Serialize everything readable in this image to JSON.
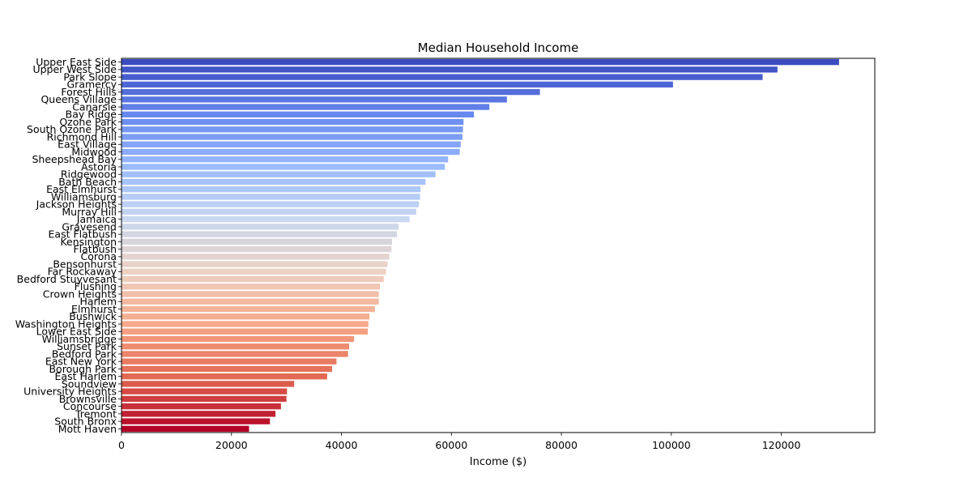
{
  "chart_data": {
    "type": "bar",
    "orientation": "horizontal",
    "title": "Median Household Income",
    "xlabel": "Income ($)",
    "ylabel": "",
    "xlim": [
      0,
      137000
    ],
    "xticks": [
      0,
      20000,
      40000,
      60000,
      80000,
      100000,
      120000
    ],
    "xtick_labels": [
      "0",
      "20000",
      "40000",
      "60000",
      "80000",
      "100000",
      "120000"
    ],
    "grid": false,
    "colormap": "coolwarm",
    "colormap_stops": [
      "#3b4cc0",
      "#6788ee",
      "#9abbff",
      "#c9d7f0",
      "#edd1c2",
      "#f7a889",
      "#e26952",
      "#b40426"
    ],
    "categories": [
      "Upper East Side",
      "Upper West Side",
      "Park Slope",
      "Gramercy",
      "Forest Hills",
      "Queens Village",
      "Canarsie",
      "Bay Ridge",
      "Ozone Park",
      "South Ozone Park",
      "Richmond Hill",
      "East Village",
      "Midwood",
      "Sheepshead Bay",
      "Astoria",
      "Ridgewood",
      "Bath Beach",
      "East Elmhurst",
      "Williamsburg",
      "Jackson Heights",
      "Murray Hill",
      "Jamaica",
      "Gravesend",
      "East Flatbush",
      "Kensington",
      "Flatbush",
      "Corona",
      "Bensonhurst",
      "Far Rockaway",
      "Bedford Stuyvesant",
      "Flushing",
      "Crown Heights",
      "Harlem",
      "Elmhurst",
      "Bushwick",
      "Washington Heights",
      "Lower East Side",
      "Williamsbridge",
      "Sunset Park",
      "Bedford Park",
      "East New York",
      "Borough Park",
      "East Harlem",
      "Soundview",
      "University Heights",
      "Brownsville",
      "Concourse",
      "Tremont",
      "South Bronx",
      "Mott Haven"
    ],
    "values": [
      130500,
      119300,
      116600,
      100300,
      76100,
      70100,
      66900,
      64100,
      62200,
      62100,
      62000,
      61700,
      61500,
      59400,
      58800,
      57100,
      55300,
      54400,
      54300,
      54100,
      53600,
      52400,
      50400,
      50100,
      49200,
      49100,
      48700,
      48400,
      48100,
      47700,
      47000,
      46800,
      46800,
      46100,
      45100,
      44900,
      44800,
      42300,
      41400,
      41200,
      39100,
      38300,
      37400,
      31400,
      30100,
      30000,
      29000,
      28000,
      27000,
      23200
    ]
  }
}
